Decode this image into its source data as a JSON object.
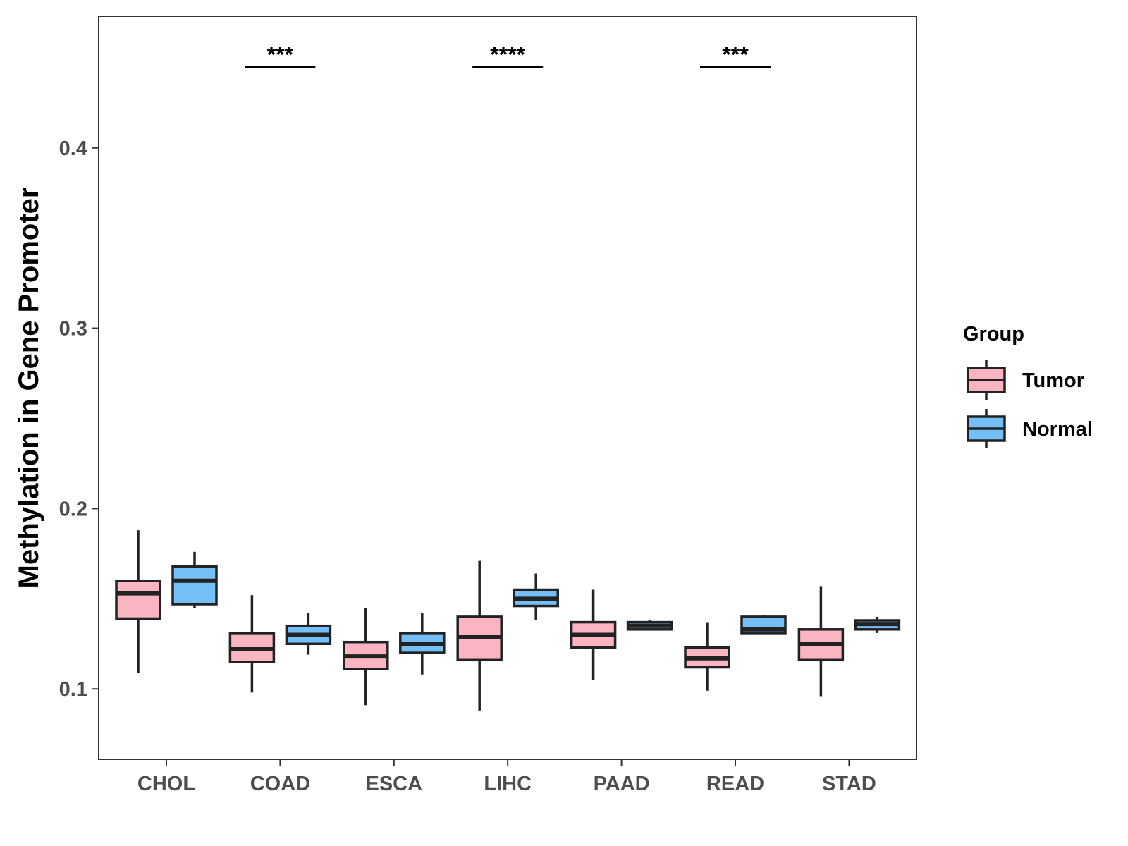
{
  "chart_data": {
    "type": "boxplot",
    "ylabel": "Methylation in Gene Promoter",
    "xlabel": "",
    "ylim": [
      0.061,
      0.473
    ],
    "yticks": [
      0.1,
      0.2,
      0.3,
      0.4
    ],
    "ytick_labels": [
      "0.1",
      "0.2",
      "0.3",
      "0.4"
    ],
    "categories": [
      "CHOL",
      "COAD",
      "ESCA",
      "LIHC",
      "PAAD",
      "READ",
      "STAD"
    ],
    "legend": {
      "title": "Group",
      "position": "right",
      "entries": [
        {
          "name": "Tumor",
          "color": "#fbb4c2"
        },
        {
          "name": "Normal",
          "color": "#74bff7"
        }
      ]
    },
    "series": [
      {
        "name": "Tumor",
        "color": "#fbb4c2",
        "boxes": [
          {
            "category": "CHOL",
            "min": 0.109,
            "q1": 0.139,
            "median": 0.153,
            "q3": 0.16,
            "max": 0.188
          },
          {
            "category": "COAD",
            "min": 0.098,
            "q1": 0.115,
            "median": 0.122,
            "q3": 0.131,
            "max": 0.152
          },
          {
            "category": "ESCA",
            "min": 0.091,
            "q1": 0.111,
            "median": 0.118,
            "q3": 0.126,
            "max": 0.145
          },
          {
            "category": "LIHC",
            "min": 0.088,
            "q1": 0.116,
            "median": 0.129,
            "q3": 0.14,
            "max": 0.171
          },
          {
            "category": "PAAD",
            "min": 0.105,
            "q1": 0.123,
            "median": 0.13,
            "q3": 0.137,
            "max": 0.155
          },
          {
            "category": "READ",
            "min": 0.099,
            "q1": 0.112,
            "median": 0.117,
            "q3": 0.123,
            "max": 0.137
          },
          {
            "category": "STAD",
            "min": 0.096,
            "q1": 0.116,
            "median": 0.125,
            "q3": 0.133,
            "max": 0.157
          }
        ]
      },
      {
        "name": "Normal",
        "color": "#74bff7",
        "boxes": [
          {
            "category": "CHOL",
            "min": 0.145,
            "q1": 0.147,
            "median": 0.16,
            "q3": 0.168,
            "max": 0.176
          },
          {
            "category": "COAD",
            "min": 0.119,
            "q1": 0.125,
            "median": 0.13,
            "q3": 0.135,
            "max": 0.142
          },
          {
            "category": "ESCA",
            "min": 0.108,
            "q1": 0.12,
            "median": 0.125,
            "q3": 0.131,
            "max": 0.142
          },
          {
            "category": "LIHC",
            "min": 0.138,
            "q1": 0.146,
            "median": 0.15,
            "q3": 0.155,
            "max": 0.164
          },
          {
            "category": "PAAD",
            "min": 0.133,
            "q1": 0.133,
            "median": 0.135,
            "q3": 0.137,
            "max": 0.138
          },
          {
            "category": "READ",
            "min": 0.131,
            "q1": 0.131,
            "median": 0.133,
            "q3": 0.14,
            "max": 0.141
          },
          {
            "category": "STAD",
            "min": 0.131,
            "q1": 0.133,
            "median": 0.136,
            "q3": 0.138,
            "max": 0.14
          }
        ]
      }
    ],
    "annotations": [
      {
        "category": "COAD",
        "label": "***",
        "y": 0.445
      },
      {
        "category": "LIHC",
        "label": "****",
        "y": 0.445
      },
      {
        "category": "READ",
        "label": "***",
        "y": 0.445
      }
    ]
  }
}
